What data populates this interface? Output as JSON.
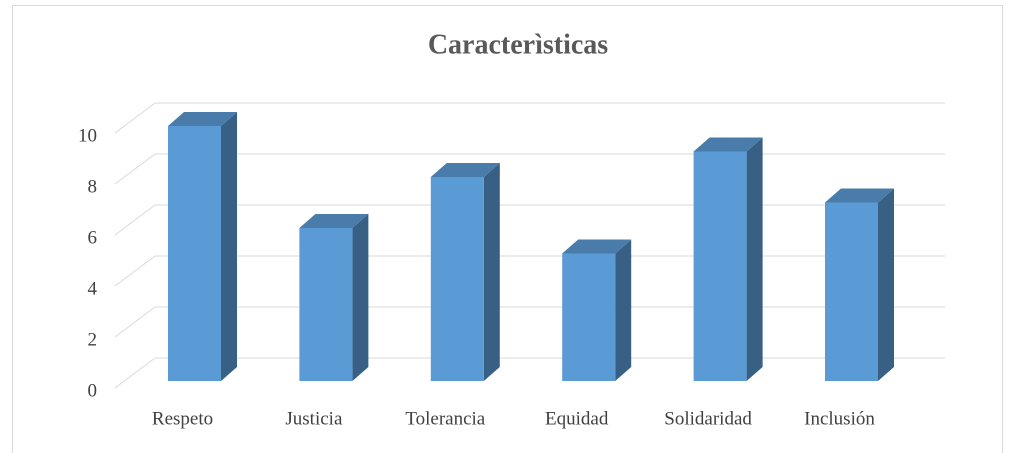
{
  "chart_data": {
    "type": "bar3d",
    "title": "Caracterìsticas",
    "categories": [
      "Respeto",
      "Justicia",
      "Tolerancia",
      "Equidad",
      "Solidaridad",
      "Inclusión"
    ],
    "values": [
      10,
      6,
      8,
      5,
      9,
      7
    ],
    "color": "#5b9bd5",
    "ylim": [
      0,
      10
    ],
    "yticks": [
      0,
      2,
      4,
      6,
      8,
      10
    ],
    "grid": true
  }
}
